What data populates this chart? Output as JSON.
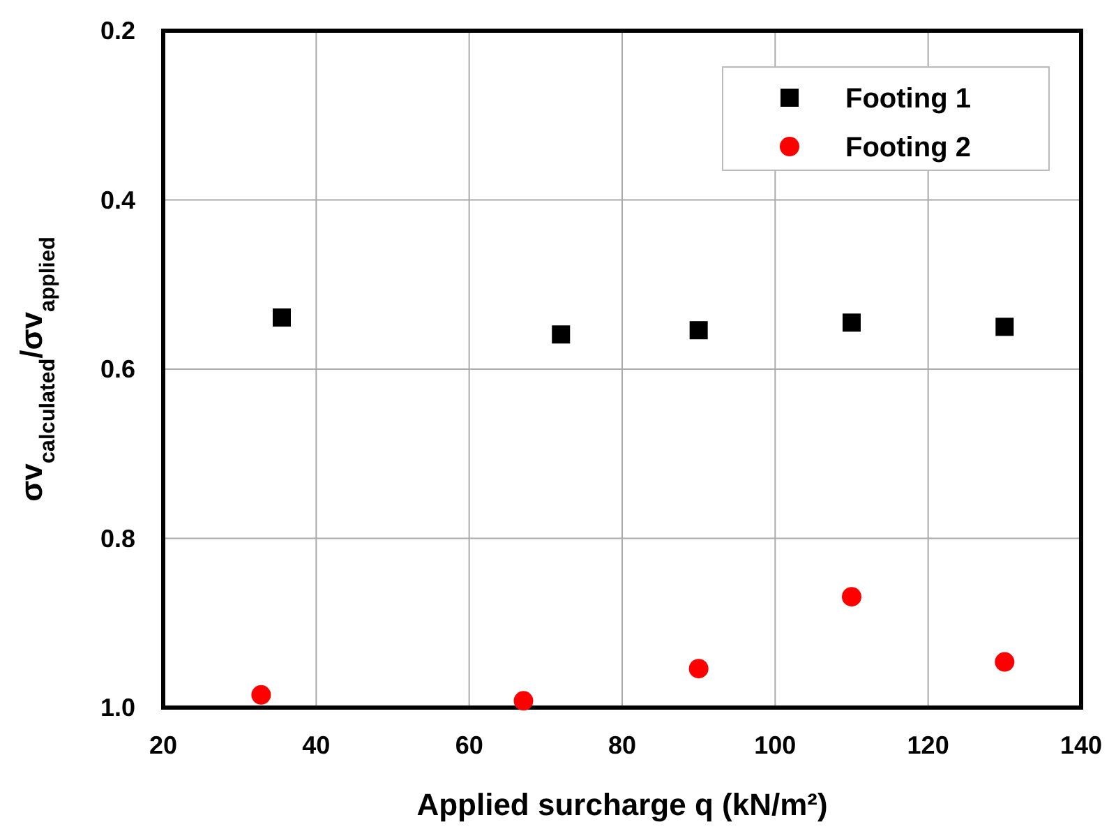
{
  "chart_data": {
    "type": "scatter",
    "xlabel": "Applied surcharge q (kN/m²)",
    "ylabel": "σv$_{calculated}$/σv$_{applied}$",
    "xlim": [
      20,
      140
    ],
    "xticks": [
      20,
      40,
      60,
      80,
      100,
      120,
      140
    ],
    "ylim": [
      1.0,
      0.2
    ],
    "yticks": [
      {
        "value": 0.2,
        "label": "0.2"
      },
      {
        "value": 0.4,
        "label": "0.4"
      },
      {
        "value": 0.6,
        "label": "0.6"
      },
      {
        "value": 0.8,
        "label": "0.8"
      },
      {
        "value": 1.0,
        "label": "1.0"
      }
    ],
    "grid": true,
    "legend": "top right",
    "series": [
      {
        "name": "Footing 1",
        "color": "#000000",
        "marker": "square",
        "x": [
          35.5,
          72,
          90,
          110,
          130
        ],
        "values": [
          0.539,
          0.559,
          0.554,
          0.545,
          0.55
        ]
      },
      {
        "name": "Footing 2",
        "color": "#ff0000",
        "marker": "circle",
        "x": [
          32.8,
          67.1,
          90,
          110,
          130
        ],
        "values": [
          0.985,
          0.992,
          0.954,
          0.869,
          0.946
        ]
      }
    ]
  }
}
